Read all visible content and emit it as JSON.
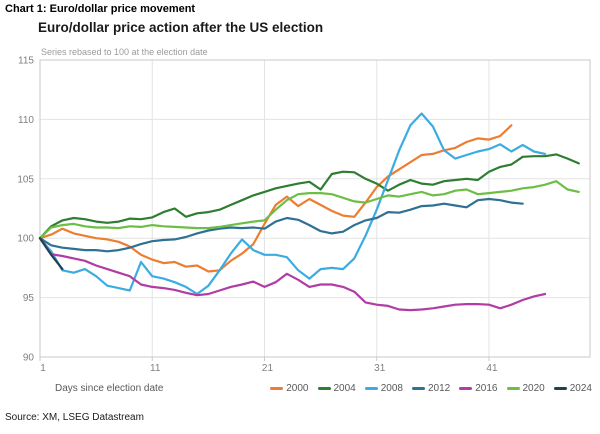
{
  "page": {
    "kicker": "Chart 1: Euro/dollar price movement",
    "source": "Source: XM, LSEG Datastream"
  },
  "chart_data": {
    "type": "line",
    "title": "Euro/dollar price action after the US election",
    "subtitle": "Series rebased to 100 at the election date",
    "xlabel": "Days since election date",
    "xlim": [
      1,
      50
    ],
    "ylim": [
      90,
      115
    ],
    "x_ticks": [
      1,
      11,
      21,
      31,
      41
    ],
    "y_ticks": [
      90,
      95,
      100,
      105,
      110,
      115
    ],
    "grid": true,
    "legend_position": "bottom",
    "colors": {
      "grid": "#e3e3e3",
      "border": "#c9c9c9",
      "tick_label": "#7f7f7f"
    },
    "series": [
      {
        "name": "2000",
        "color": "#ED7D31",
        "values": [
          100,
          100.3,
          100.8,
          100.4,
          100.2,
          100.0,
          99.9,
          99.7,
          99.3,
          98.6,
          98.2,
          97.9,
          98.0,
          97.6,
          97.7,
          97.2,
          97.3,
          98.1,
          98.7,
          99.5,
          101.2,
          102.8,
          103.5,
          102.7,
          103.3,
          102.8,
          102.3,
          101.9,
          101.8,
          103.0,
          104.3,
          105.2,
          105.8,
          106.4,
          107.0,
          107.1,
          107.4,
          107.6,
          108.1,
          108.4,
          108.3,
          108.6,
          109.5
        ]
      },
      {
        "name": "2004",
        "color": "#2E7D32",
        "values": [
          100,
          101.0,
          101.5,
          101.7,
          101.6,
          101.4,
          101.3,
          101.4,
          101.65,
          101.6,
          101.75,
          102.2,
          102.5,
          101.8,
          102.1,
          102.2,
          102.4,
          102.8,
          103.2,
          103.6,
          103.9,
          104.2,
          104.4,
          104.6,
          104.75,
          104.1,
          105.4,
          105.6,
          105.55,
          105.0,
          104.6,
          104.0,
          104.5,
          104.9,
          104.6,
          104.5,
          104.8,
          104.9,
          105.0,
          104.9,
          105.6,
          106.0,
          106.2,
          106.85,
          106.9,
          106.9,
          107.05,
          106.7,
          106.3
        ]
      },
      {
        "name": "2008",
        "color": "#3BACE2",
        "values": [
          100,
          98.9,
          97.3,
          97.1,
          97.4,
          96.8,
          96.0,
          95.8,
          95.6,
          98.0,
          96.8,
          96.6,
          96.3,
          95.9,
          95.3,
          96.0,
          97.3,
          98.7,
          99.9,
          99.0,
          98.6,
          98.6,
          98.4,
          97.3,
          96.6,
          97.4,
          97.5,
          97.4,
          98.3,
          100.2,
          102.4,
          104.9,
          107.4,
          109.5,
          110.5,
          109.4,
          107.4,
          106.7,
          107.0,
          107.3,
          107.5,
          107.9,
          107.3,
          107.85,
          107.3,
          107.1
        ]
      },
      {
        "name": "2012",
        "color": "#2F7193",
        "values": [
          100,
          99.4,
          99.2,
          99.1,
          99.0,
          99.0,
          98.9,
          99.0,
          99.2,
          99.5,
          99.75,
          99.85,
          99.9,
          100.1,
          100.4,
          100.65,
          100.8,
          100.9,
          100.85,
          100.9,
          100.8,
          101.4,
          101.7,
          101.55,
          101.1,
          100.6,
          100.4,
          100.55,
          101.1,
          101.5,
          101.7,
          102.2,
          102.15,
          102.4,
          102.7,
          102.75,
          102.9,
          102.75,
          102.6,
          103.2,
          103.3,
          103.2,
          103.0,
          102.9
        ]
      },
      {
        "name": "2016",
        "color": "#B13CA4",
        "values": [
          100,
          98.65,
          98.5,
          98.3,
          98.1,
          97.7,
          97.4,
          97.1,
          96.8,
          96.1,
          95.9,
          95.8,
          95.65,
          95.4,
          95.2,
          95.3,
          95.6,
          95.9,
          96.1,
          96.35,
          95.9,
          96.3,
          97.0,
          96.5,
          95.9,
          96.1,
          96.1,
          95.9,
          95.5,
          94.6,
          94.4,
          94.3,
          94.0,
          93.95,
          94.0,
          94.1,
          94.25,
          94.4,
          94.45,
          94.45,
          94.4,
          94.1,
          94.4,
          94.8,
          95.1,
          95.3
        ]
      },
      {
        "name": "2020",
        "color": "#6CBE45",
        "values": [
          100,
          100.9,
          101.1,
          101.2,
          101.0,
          100.9,
          100.9,
          100.85,
          101.0,
          100.95,
          101.1,
          101.0,
          100.95,
          100.9,
          100.85,
          100.85,
          100.95,
          101.1,
          101.25,
          101.4,
          101.5,
          102.4,
          103.2,
          103.7,
          103.8,
          103.8,
          103.7,
          103.4,
          103.1,
          103.0,
          103.3,
          103.6,
          103.5,
          103.7,
          103.9,
          103.6,
          103.7,
          104.0,
          104.1,
          103.7,
          103.8,
          103.9,
          104.0,
          104.2,
          104.3,
          104.5,
          104.8,
          104.1,
          103.9
        ]
      },
      {
        "name": "2024",
        "color": "#24404F",
        "values": [
          100,
          98.6,
          97.4
        ]
      }
    ]
  }
}
